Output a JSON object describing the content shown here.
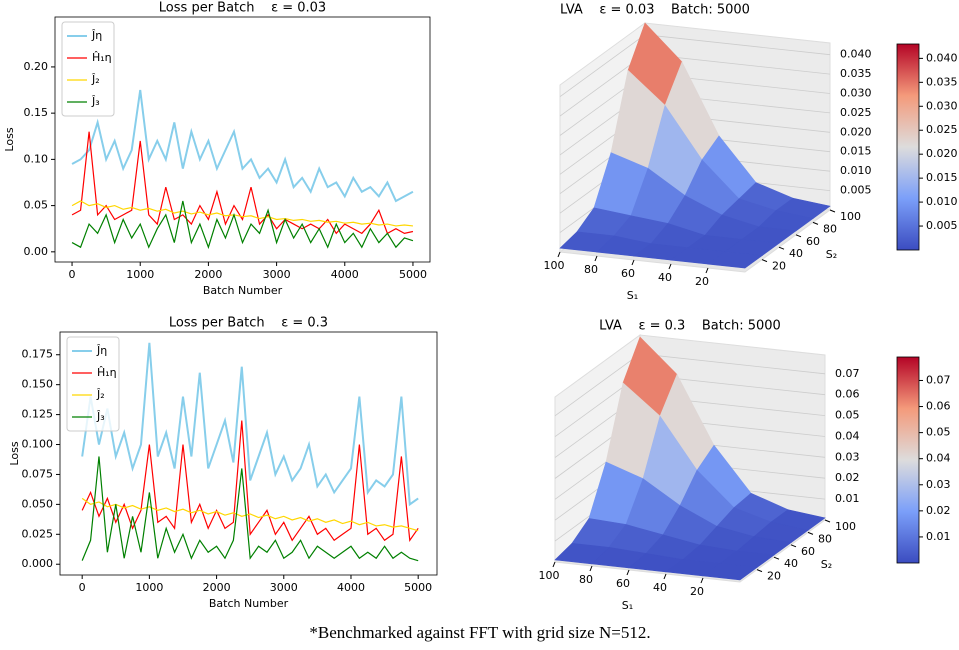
{
  "chart_data": [
    {
      "type": "line",
      "title": "Loss per Batch    ε = 0.03",
      "x_label": "Batch Number",
      "y_label": "Loss",
      "legend": "upper left",
      "x": [
        0,
        125,
        250,
        375,
        500,
        625,
        750,
        875,
        1000,
        1125,
        1250,
        1375,
        1500,
        1625,
        1750,
        1875,
        2000,
        2125,
        2250,
        2375,
        2500,
        2625,
        2750,
        2875,
        3000,
        3125,
        3250,
        3375,
        3500,
        3625,
        3750,
        3875,
        4000,
        4125,
        4250,
        4375,
        4500,
        4625,
        4750,
        4875,
        5000
      ],
      "xlim": [
        -250,
        5250
      ],
      "xticks": [
        0,
        1000,
        2000,
        3000,
        4000,
        5000
      ],
      "ylim": [
        -0.011,
        0.254
      ],
      "yticks": [
        {
          "value": 0,
          "label": "0.00"
        },
        {
          "value": 0.05,
          "label": "0.05"
        },
        {
          "value": 0.1,
          "label": "0.10"
        },
        {
          "value": 0.15,
          "label": "0.15"
        },
        {
          "value": 0.2,
          "label": "0.20"
        }
      ],
      "series": [
        {
          "name": "Ĵη",
          "color": "#87ceeb",
          "values": [
            0.095,
            0.1,
            0.11,
            0.14,
            0.1,
            0.12,
            0.09,
            0.11,
            0.175,
            0.1,
            0.12,
            0.1,
            0.14,
            0.09,
            0.13,
            0.1,
            0.12,
            0.09,
            0.11,
            0.13,
            0.09,
            0.1,
            0.08,
            0.09,
            0.075,
            0.1,
            0.07,
            0.08,
            0.065,
            0.09,
            0.07,
            0.075,
            0.06,
            0.08,
            0.065,
            0.07,
            0.06,
            0.075,
            0.055,
            0.06,
            0.065
          ]
        },
        {
          "name": "Ĥ₁η",
          "color": "#ff0000",
          "values": [
            0.04,
            0.045,
            0.13,
            0.04,
            0.05,
            0.035,
            0.04,
            0.045,
            0.12,
            0.04,
            0.03,
            0.07,
            0.035,
            0.04,
            0.03,
            0.05,
            0.035,
            0.065,
            0.03,
            0.05,
            0.035,
            0.07,
            0.03,
            0.04,
            0.025,
            0.035,
            0.03,
            0.025,
            0.03,
            0.025,
            0.035,
            0.02,
            0.03,
            0.025,
            0.02,
            0.03,
            0.045,
            0.02,
            0.025,
            0.02,
            0.022
          ]
        },
        {
          "name": "Ĵ₂",
          "color": "#ffd700",
          "values": [
            0.05,
            0.055,
            0.05,
            0.052,
            0.048,
            0.05,
            0.046,
            0.048,
            0.045,
            0.047,
            0.044,
            0.046,
            0.042,
            0.044,
            0.041,
            0.043,
            0.04,
            0.042,
            0.039,
            0.04,
            0.038,
            0.039,
            0.036,
            0.038,
            0.035,
            0.036,
            0.034,
            0.035,
            0.033,
            0.034,
            0.032,
            0.033,
            0.031,
            0.032,
            0.03,
            0.031,
            0.029,
            0.03,
            0.028,
            0.029,
            0.028
          ]
        },
        {
          "name": "Ĵ₃",
          "color": "#008000",
          "values": [
            0.01,
            0.005,
            0.03,
            0.02,
            0.04,
            0.01,
            0.035,
            0.015,
            0.03,
            0.005,
            0.025,
            0.04,
            0.01,
            0.055,
            0.01,
            0.03,
            0.005,
            0.035,
            0.015,
            0.04,
            0.01,
            0.03,
            0.02,
            0.045,
            0.01,
            0.035,
            0.015,
            0.03,
            0.01,
            0.025,
            0.005,
            0.03,
            0.01,
            0.02,
            0.005,
            0.025,
            0.01,
            0.02,
            0.005,
            0.015,
            0.012
          ]
        }
      ]
    },
    {
      "type": "surface",
      "title": "LVA    ε = 0.03    Batch: 5000",
      "x_label": "S₁",
      "y_label": "S₂",
      "colormap": "coolwarm",
      "x": [
        0,
        20,
        40,
        60,
        80,
        100
      ],
      "y": [
        0,
        20,
        40,
        60,
        80,
        100
      ],
      "z": [
        [
          0.001,
          0.001,
          0.001,
          0.001,
          0.001,
          0.001
        ],
        [
          0.001,
          0.001,
          0.001,
          0.001,
          0.002,
          0.002
        ],
        [
          0.001,
          0.001,
          0.001,
          0.003,
          0.004,
          0.005
        ],
        [
          0.001,
          0.001,
          0.003,
          0.007,
          0.013,
          0.016
        ],
        [
          0.001,
          0.002,
          0.004,
          0.013,
          0.026,
          0.034
        ],
        [
          0.001,
          0.002,
          0.005,
          0.016,
          0.034,
          0.043
        ]
      ],
      "xlim": [
        0,
        100
      ],
      "ylim": [
        0,
        100
      ],
      "zlim": [
        0,
        0.043
      ],
      "xticks": [
        20,
        40,
        60,
        80,
        100
      ],
      "yticks": [
        20,
        40,
        60,
        80,
        100
      ],
      "zticks": [
        0.005,
        {
          "value": 0.01,
          "label": "0.010"
        },
        0.015,
        {
          "value": 0.02,
          "label": "0.020"
        },
        0.025,
        {
          "value": 0.03,
          "label": "0.030"
        },
        0.035,
        {
          "value": 0.04,
          "label": "0.040"
        }
      ]
    },
    {
      "type": "line",
      "title": "Loss per Batch    ε = 0.3",
      "x_label": "Batch Number",
      "y_label": "Loss",
      "legend": "upper left",
      "x": [
        0,
        125,
        250,
        375,
        500,
        625,
        750,
        875,
        1000,
        1125,
        1250,
        1375,
        1500,
        1625,
        1750,
        1875,
        2000,
        2125,
        2250,
        2375,
        2500,
        2625,
        2750,
        2875,
        3000,
        3125,
        3250,
        3375,
        3500,
        3625,
        3750,
        3875,
        4000,
        4125,
        4250,
        4375,
        4500,
        4625,
        4750,
        4875,
        5000
      ],
      "xlim": [
        -330,
        5280
      ],
      "xticks": [
        0,
        1000,
        2000,
        3000,
        4000,
        5000
      ],
      "ylim": [
        -0.009,
        0.194
      ],
      "yticks": [
        {
          "value": 0,
          "label": "0.000"
        },
        {
          "value": 0.025,
          "label": "0.025"
        },
        {
          "value": 0.05,
          "label": "0.050"
        },
        {
          "value": 0.075,
          "label": "0.075"
        },
        {
          "value": 0.1,
          "label": "0.100"
        },
        {
          "value": 0.125,
          "label": "0.125"
        },
        {
          "value": 0.15,
          "label": "0.150"
        },
        {
          "value": 0.175,
          "label": "0.175"
        }
      ],
      "series": [
        {
          "name": "Ĵη",
          "color": "#87ceeb",
          "values": [
            0.09,
            0.14,
            0.1,
            0.13,
            0.09,
            0.11,
            0.08,
            0.1,
            0.185,
            0.09,
            0.11,
            0.08,
            0.14,
            0.09,
            0.16,
            0.08,
            0.1,
            0.12,
            0.085,
            0.165,
            0.07,
            0.09,
            0.11,
            0.075,
            0.09,
            0.07,
            0.08,
            0.1,
            0.065,
            0.075,
            0.06,
            0.07,
            0.08,
            0.14,
            0.06,
            0.07,
            0.065,
            0.075,
            0.14,
            0.05,
            0.055
          ]
        },
        {
          "name": "Ĥ₁η",
          "color": "#ff0000",
          "values": [
            0.045,
            0.06,
            0.04,
            0.055,
            0.035,
            0.05,
            0.03,
            0.045,
            0.1,
            0.035,
            0.04,
            0.03,
            0.1,
            0.035,
            0.05,
            0.03,
            0.045,
            0.03,
            0.035,
            0.12,
            0.025,
            0.035,
            0.045,
            0.025,
            0.035,
            0.02,
            0.03,
            0.04,
            0.025,
            0.03,
            0.02,
            0.025,
            0.03,
            0.1,
            0.025,
            0.03,
            0.02,
            0.025,
            0.09,
            0.02,
            0.03
          ]
        },
        {
          "name": "Ĵ₂",
          "color": "#ffd700",
          "values": [
            0.055,
            0.05,
            0.052,
            0.048,
            0.05,
            0.047,
            0.049,
            0.046,
            0.048,
            0.045,
            0.047,
            0.044,
            0.046,
            0.043,
            0.045,
            0.042,
            0.044,
            0.041,
            0.043,
            0.04,
            0.042,
            0.039,
            0.041,
            0.038,
            0.04,
            0.037,
            0.039,
            0.036,
            0.038,
            0.035,
            0.037,
            0.034,
            0.036,
            0.033,
            0.035,
            0.032,
            0.033,
            0.031,
            0.032,
            0.03,
            0.028
          ]
        },
        {
          "name": "Ĵ₃",
          "color": "#008000",
          "values": [
            0.003,
            0.02,
            0.09,
            0.01,
            0.05,
            0.005,
            0.04,
            0.01,
            0.06,
            0.005,
            0.03,
            0.01,
            0.025,
            0.005,
            0.02,
            0.01,
            0.015,
            0.005,
            0.02,
            0.08,
            0.005,
            0.015,
            0.01,
            0.02,
            0.005,
            0.01,
            0.02,
            0.005,
            0.015,
            0.01,
            0.005,
            0.01,
            0.015,
            0.005,
            0.01,
            0.005,
            0.015,
            0.005,
            0.01,
            0.005,
            0.003
          ]
        }
      ]
    },
    {
      "type": "surface",
      "title": "LVA    ε = 0.3    Batch: 5000",
      "x_label": "S₁",
      "y_label": "S₂",
      "colormap": "coolwarm",
      "x": [
        0,
        20,
        40,
        60,
        80,
        100
      ],
      "y": [
        0,
        20,
        40,
        60,
        80,
        100
      ],
      "z": [
        [
          0.001,
          0.001,
          0.001,
          0.001,
          0.001,
          0.001
        ],
        [
          0.001,
          0.001,
          0.001,
          0.002,
          0.003,
          0.003
        ],
        [
          0.001,
          0.001,
          0.002,
          0.005,
          0.008,
          0.009
        ],
        [
          0.001,
          0.002,
          0.005,
          0.013,
          0.024,
          0.03
        ],
        [
          0.001,
          0.003,
          0.008,
          0.024,
          0.048,
          0.062
        ],
        [
          0.001,
          0.003,
          0.009,
          0.03,
          0.062,
          0.078
        ]
      ],
      "xlim": [
        0,
        100
      ],
      "ylim": [
        0,
        100
      ],
      "zlim": [
        0,
        0.079
      ],
      "xticks": [
        20,
        40,
        60,
        80,
        100
      ],
      "yticks": [
        20,
        40,
        60,
        80,
        100
      ],
      "zticks": [
        0.01,
        0.02,
        0.03,
        0.04,
        0.05,
        0.06,
        0.07
      ]
    }
  ],
  "caption": "*Benchmarked against FFT with grid size N=512."
}
